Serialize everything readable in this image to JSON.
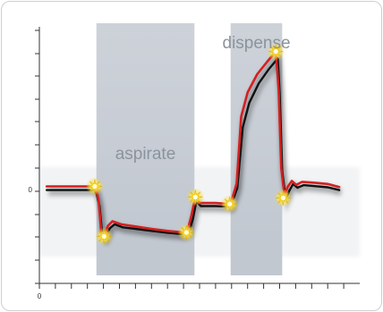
{
  "chart_data": {
    "type": "line",
    "title": "",
    "xlabel": "",
    "ylabel": "",
    "y_tick_labels": [
      {
        "label": "0",
        "value": 0
      }
    ],
    "x_tick_labels": [
      {
        "label": "0",
        "value": 0
      }
    ],
    "grid": false,
    "legend": "none",
    "xlim": [
      0,
      100
    ],
    "ylim": [
      -3.1,
      5.6
    ],
    "regions": [
      {
        "label": "aspirate",
        "start": 17.8,
        "end": 48.4
      },
      {
        "label": "dispense",
        "start": 59.7,
        "end": 75.8
      }
    ],
    "series": [
      {
        "color": "#d42020",
        "points": [
          [
            2.3,
            0.1
          ],
          [
            17.1,
            0.1
          ],
          [
            17.6,
            0.05
          ],
          [
            18.5,
            -0.35
          ],
          [
            19.3,
            -1.4
          ],
          [
            20.2,
            -1.55
          ],
          [
            21.4,
            -1.2
          ],
          [
            22.8,
            -1.05
          ],
          [
            25.5,
            -1.15
          ],
          [
            30,
            -1.22
          ],
          [
            35,
            -1.3
          ],
          [
            40,
            -1.37
          ],
          [
            45,
            -1.42
          ],
          [
            46.4,
            -1.3
          ],
          [
            47.5,
            -0.85
          ],
          [
            48.7,
            -0.25
          ],
          [
            50,
            -0.45
          ],
          [
            52,
            -0.45
          ],
          [
            55,
            -0.45
          ],
          [
            59.7,
            -0.48
          ],
          [
            61.6,
            0.2
          ],
          [
            63,
            2.4
          ],
          [
            65,
            3.2
          ],
          [
            68,
            3.8
          ],
          [
            71,
            4.2
          ],
          [
            73.8,
            4.55
          ],
          [
            74.7,
            3.3
          ],
          [
            75.5,
            0.7
          ],
          [
            76.5,
            -0.2
          ],
          [
            77.5,
            0.08
          ],
          [
            78.8,
            0.28
          ],
          [
            80.2,
            0.15
          ],
          [
            82,
            0.25
          ],
          [
            86,
            0.22
          ],
          [
            90,
            0.18
          ],
          [
            93.6,
            0.08
          ]
        ]
      },
      {
        "color": "#111111",
        "points": [
          [
            2.3,
            -0.02
          ],
          [
            17.3,
            -0.02
          ],
          [
            17.8,
            -0.12
          ],
          [
            18.8,
            -0.55
          ],
          [
            19.6,
            -1.48
          ],
          [
            20.6,
            -1.58
          ],
          [
            22,
            -1.28
          ],
          [
            23.5,
            -1.15
          ],
          [
            26,
            -1.25
          ],
          [
            30,
            -1.3
          ],
          [
            35,
            -1.37
          ],
          [
            40,
            -1.43
          ],
          [
            45,
            -1.48
          ],
          [
            46.8,
            -1.4
          ],
          [
            48,
            -0.95
          ],
          [
            49,
            -0.4
          ],
          [
            50.4,
            -0.55
          ],
          [
            52,
            -0.55
          ],
          [
            55,
            -0.55
          ],
          [
            59.7,
            -0.57
          ],
          [
            61.8,
            0.05
          ],
          [
            63.5,
            2.05
          ],
          [
            65.5,
            2.85
          ],
          [
            68.5,
            3.5
          ],
          [
            71.5,
            3.95
          ],
          [
            74.4,
            4.32
          ],
          [
            75,
            3.2
          ],
          [
            75.8,
            0.6
          ],
          [
            76.9,
            -0.32
          ],
          [
            78,
            -0.05
          ],
          [
            79.2,
            0.18
          ],
          [
            80.6,
            0.06
          ],
          [
            82.5,
            0.14
          ],
          [
            86,
            0.11
          ],
          [
            90,
            0.07
          ],
          [
            93.6,
            -0.02
          ]
        ]
      }
    ],
    "markers": [
      {
        "x": 17.3,
        "y": 0.1
      },
      {
        "x": 20.2,
        "y": -1.55
      },
      {
        "x": 45.9,
        "y": -1.42
      },
      {
        "x": 48.7,
        "y": -0.25
      },
      {
        "x": 59.4,
        "y": -0.48
      },
      {
        "x": 73.8,
        "y": 4.55
      },
      {
        "x": 76.1,
        "y": -0.28
      }
    ]
  }
}
